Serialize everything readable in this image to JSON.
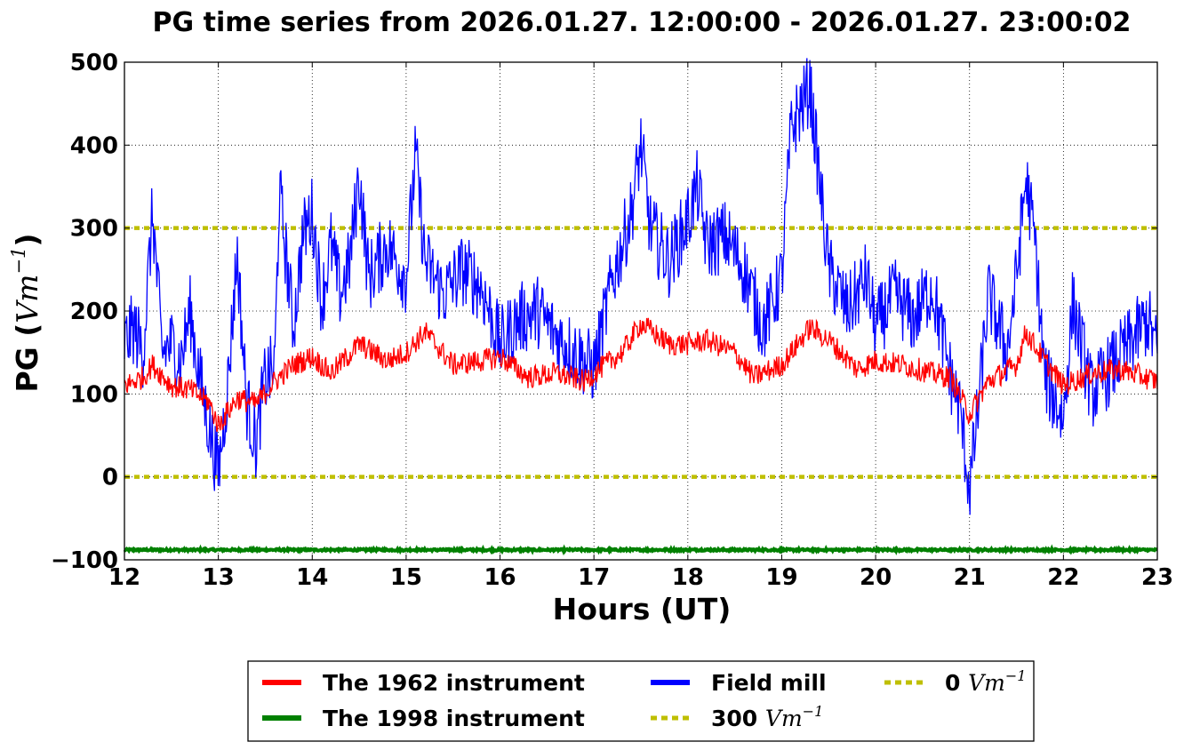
{
  "chart_data": {
    "type": "line",
    "title": "PG time series from 2026.01.27. 12:00:00 - 2026.01.27. 23:00:02",
    "xlabel": "Hours (UT)",
    "ylabel_text": "PG (",
    "ylabel_unit": "Vm",
    "ylabel_exp": "−1",
    "ylabel_close": ")",
    "xlim": [
      12,
      23
    ],
    "ylim": [
      -100,
      500
    ],
    "xticks": [
      12,
      13,
      14,
      15,
      16,
      17,
      18,
      19,
      20,
      21,
      22,
      23
    ],
    "yticks": [
      -100,
      0,
      100,
      200,
      300,
      400,
      500
    ],
    "ytick_labels": [
      "−100",
      "0",
      "100",
      "200",
      "300",
      "400",
      "500"
    ],
    "grid": true,
    "legend_position": "bottom-center",
    "unit_symbol": "Vm",
    "unit_exponent": "−1",
    "series": [
      {
        "name": "The 1962 instrument",
        "color": "#ff0000",
        "style": "solid",
        "x": [
          12.0,
          12.2,
          12.3,
          12.5,
          12.7,
          12.9,
          13.0,
          13.2,
          13.4,
          13.6,
          13.8,
          14.0,
          14.2,
          14.5,
          14.8,
          15.0,
          15.2,
          15.5,
          15.8,
          16.0,
          16.3,
          16.6,
          16.9,
          17.0,
          17.3,
          17.5,
          17.8,
          18.0,
          18.2,
          18.5,
          18.7,
          19.0,
          19.3,
          19.5,
          19.8,
          20.0,
          20.3,
          20.6,
          20.8,
          21.0,
          21.2,
          21.5,
          21.6,
          21.8,
          22.0,
          22.3,
          22.6,
          23.0
        ],
        "values": [
          110,
          120,
          135,
          110,
          105,
          90,
          62,
          95,
          88,
          115,
          135,
          145,
          125,
          160,
          140,
          150,
          175,
          135,
          140,
          145,
          120,
          125,
          115,
          125,
          150,
          185,
          160,
          160,
          165,
          150,
          120,
          135,
          180,
          165,
          130,
          140,
          135,
          125,
          120,
          75,
          115,
          135,
          175,
          140,
          110,
          125,
          130,
          115
        ]
      },
      {
        "name": "The 1998 instrument",
        "color": "#008000",
        "style": "solid",
        "x": [
          12.0,
          23.0
        ],
        "values": [
          -88,
          -88
        ]
      },
      {
        "name": "Field mill",
        "color": "#0000ff",
        "style": "solid",
        "x": [
          12.0,
          12.1,
          12.2,
          12.3,
          12.4,
          12.5,
          12.6,
          12.7,
          12.8,
          12.9,
          13.0,
          13.1,
          13.2,
          13.3,
          13.4,
          13.5,
          13.6,
          13.65,
          13.8,
          13.9,
          14.0,
          14.1,
          14.2,
          14.3,
          14.4,
          14.5,
          14.6,
          14.8,
          15.0,
          15.1,
          15.2,
          15.4,
          15.6,
          15.8,
          16.0,
          16.2,
          16.4,
          16.6,
          16.8,
          17.0,
          17.2,
          17.4,
          17.5,
          17.6,
          17.8,
          18.0,
          18.1,
          18.2,
          18.4,
          18.6,
          18.8,
          19.0,
          19.1,
          19.3,
          19.5,
          19.7,
          19.9,
          20.0,
          20.2,
          20.4,
          20.6,
          20.8,
          20.9,
          21.0,
          21.1,
          21.2,
          21.4,
          21.5,
          21.6,
          21.7,
          21.8,
          22.0,
          22.1,
          22.3,
          22.5,
          22.7,
          22.9,
          23.0
        ],
        "values": [
          160,
          180,
          150,
          320,
          150,
          160,
          140,
          200,
          120,
          60,
          5,
          110,
          270,
          90,
          40,
          120,
          130,
          345,
          180,
          290,
          320,
          210,
          280,
          220,
          260,
          365,
          240,
          280,
          240,
          390,
          260,
          220,
          250,
          230,
          160,
          190,
          200,
          170,
          150,
          130,
          240,
          320,
          400,
          300,
          260,
          310,
          350,
          280,
          290,
          250,
          180,
          240,
          420,
          470,
          250,
          200,
          240,
          180,
          220,
          190,
          230,
          120,
          80,
          -15,
          90,
          220,
          150,
          240,
          360,
          280,
          120,
          70,
          210,
          100,
          130,
          160,
          190,
          150
        ]
      },
      {
        "name": "300",
        "color": "#bfbf00",
        "style": "dotted",
        "x": [
          12.0,
          23.0
        ],
        "values": [
          300,
          300
        ]
      },
      {
        "name": "0",
        "color": "#bfbf00",
        "style": "dotted",
        "x": [
          12.0,
          23.0
        ],
        "values": [
          0,
          0
        ]
      }
    ]
  }
}
